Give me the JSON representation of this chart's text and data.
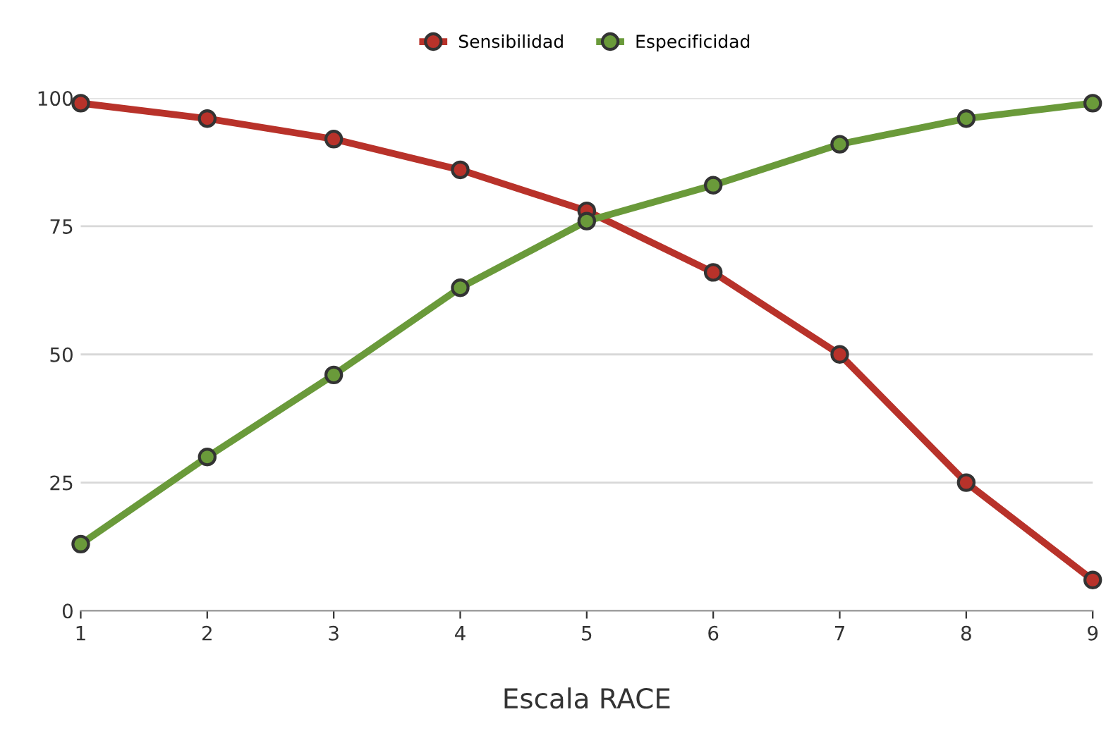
{
  "chart_data": {
    "type": "line",
    "xlabel": "Escala RACE",
    "x": [
      1,
      2,
      3,
      4,
      5,
      6,
      7,
      8,
      9
    ],
    "series": [
      {
        "name": "Sensibilidad",
        "color": "#b8322a",
        "values": [
          99,
          96,
          92,
          86,
          78,
          66,
          50,
          25,
          6
        ]
      },
      {
        "name": "Especificidad",
        "color": "#6a9a3a",
        "values": [
          13,
          30,
          46,
          63,
          76,
          83,
          91,
          96,
          99
        ]
      }
    ],
    "xlim": [
      1,
      9
    ],
    "ylim": [
      0,
      100
    ],
    "xticks": [
      1,
      2,
      3,
      4,
      5,
      6,
      7,
      8,
      9
    ],
    "yticks": [
      0,
      25,
      50,
      75,
      100
    ],
    "grid": "y",
    "legend": "top",
    "marker": "circle",
    "line_style": "solid"
  }
}
